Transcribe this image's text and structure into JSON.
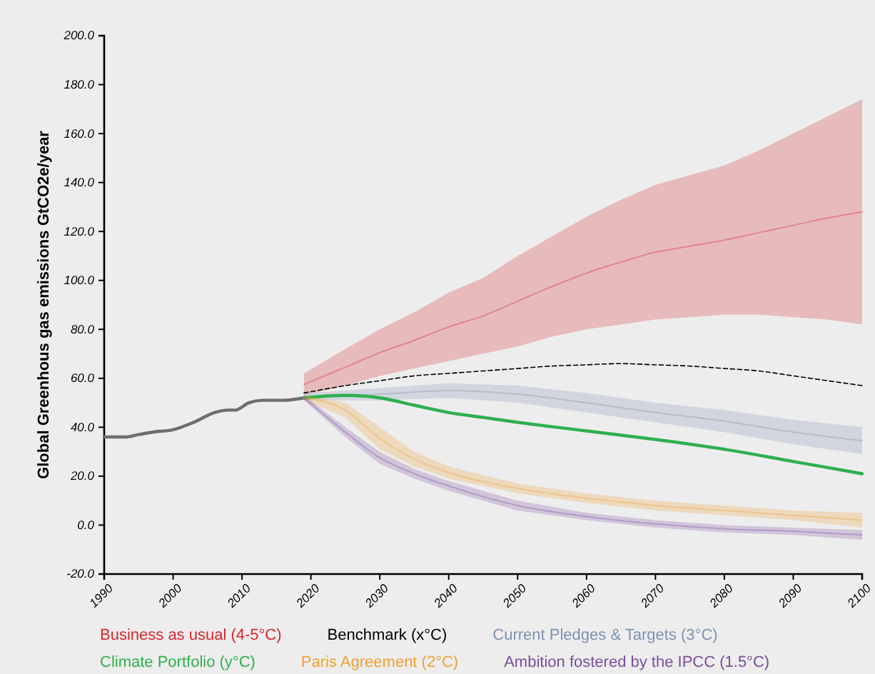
{
  "chart_data": {
    "type": "line",
    "ylabel": "Global Greenhous gas emissions GtCO2e/year",
    "xlim": [
      1990,
      2100
    ],
    "ylim": [
      -20,
      200
    ],
    "xticks": [
      1990,
      2000,
      2010,
      2020,
      2030,
      2040,
      2050,
      2060,
      2070,
      2080,
      2090,
      2100
    ],
    "yticks": [
      {
        "value": -20,
        "label": "-20.0"
      },
      {
        "value": 0,
        "label": "0.0"
      },
      {
        "value": 20,
        "label": "20.0"
      },
      {
        "value": 40,
        "label": "40.0"
      },
      {
        "value": 60,
        "label": "60.0"
      },
      {
        "value": 80,
        "label": "80.0"
      },
      {
        "value": 100,
        "label": "100.0"
      },
      {
        "value": 120,
        "label": "120.0"
      },
      {
        "value": 140,
        "label": "140.0"
      },
      {
        "value": 160,
        "label": "160.0"
      },
      {
        "value": 180,
        "label": "180.0"
      },
      {
        "value": 200,
        "label": "200.0"
      }
    ],
    "grid": false,
    "legend": "bottom",
    "marker": "none",
    "series": [
      {
        "color": "#6e6e6e",
        "x": [
          1990,
          1993,
          1995,
          1997,
          2000,
          2003,
          2006,
          2008,
          2009,
          2011,
          2013,
          2016,
          2019
        ],
        "values": [
          36,
          36,
          37,
          38,
          39,
          42,
          46,
          47,
          47,
          50,
          51,
          51,
          52
        ]
      },
      {
        "name": "Business as usual (4-5°C)",
        "color": "#d9262b",
        "x": [
          2019,
          2025,
          2030,
          2035,
          2040,
          2045,
          2050,
          2055,
          2060,
          2065,
          2070,
          2075,
          2080,
          2085,
          2090,
          2095,
          2100
        ],
        "values": [
          57.5,
          64.5,
          70.5,
          75.5,
          81,
          85.5,
          91.5,
          97.5,
          103,
          107.5,
          111.5,
          114,
          116.5,
          119.5,
          122.5,
          125.5,
          128
        ],
        "lower": [
          53,
          57,
          61,
          64,
          67,
          70,
          73,
          77,
          80,
          82,
          84,
          85,
          86,
          86,
          85,
          84,
          82
        ],
        "upper": [
          62,
          72,
          80,
          87,
          95,
          101,
          110,
          118,
          126,
          133,
          139,
          143,
          147,
          153,
          160,
          167,
          174
        ]
      },
      {
        "name": "Benchmark (x°C)",
        "color": "#000000",
        "line_style": "dashed",
        "x": [
          2019,
          2025,
          2030,
          2035,
          2040,
          2045,
          2050,
          2055,
          2060,
          2065,
          2070,
          2075,
          2080,
          2085,
          2090,
          2095,
          2100
        ],
        "values": [
          54,
          57,
          59,
          61,
          62,
          63,
          64,
          65,
          65.5,
          66,
          65.5,
          65,
          64,
          63,
          61,
          59,
          57
        ]
      },
      {
        "name": "Current Pledges & Targets (3°C)",
        "color": "#7f91b3",
        "x": [
          2019,
          2025,
          2030,
          2040,
          2050,
          2060,
          2070,
          2080,
          2090,
          2100
        ],
        "values": [
          52.5,
          53,
          53.5,
          55,
          53.5,
          50,
          46,
          42.5,
          38,
          34.5
        ],
        "lower": [
          51,
          51,
          51,
          52,
          50,
          46,
          42,
          38,
          33,
          29
        ],
        "upper": [
          54,
          55,
          56,
          58,
          57,
          54,
          50,
          47,
          43,
          40
        ]
      },
      {
        "name": "Climate Portfolio (y°C)",
        "color": "#2eb04f",
        "x": [
          2019,
          2025,
          2030,
          2035,
          2040,
          2045,
          2050,
          2060,
          2070,
          2080,
          2090,
          2100
        ],
        "values": [
          52,
          53,
          52,
          49,
          46,
          44,
          42,
          38.5,
          35,
          31,
          26,
          21
        ]
      },
      {
        "name": "Paris Agreement (2°C)",
        "color": "#f0a030",
        "x": [
          2019,
          2025,
          2030,
          2035,
          2040,
          2050,
          2060,
          2070,
          2080,
          2090,
          2100
        ],
        "values": [
          52,
          47,
          35.5,
          27,
          21.5,
          15,
          11,
          8,
          6,
          4,
          2
        ],
        "lower": [
          51,
          44,
          31,
          24,
          19,
          13,
          9,
          6,
          4,
          2,
          -1
        ],
        "upper": [
          53,
          50,
          40,
          30,
          24,
          17,
          13,
          10,
          8,
          6,
          5
        ]
      },
      {
        "name": "Ambition fostered by the IPCC (1.5°C)",
        "color": "#7a4ea0",
        "x": [
          2019,
          2025,
          2030,
          2035,
          2040,
          2050,
          2060,
          2070,
          2080,
          2090,
          2100
        ],
        "values": [
          52,
          38,
          27.5,
          21,
          16,
          8,
          3.5,
          0.5,
          -1.5,
          -2.5,
          -4
        ],
        "lower": [
          51,
          36,
          25,
          19,
          14,
          6,
          2,
          -1,
          -3,
          -4,
          -6
        ],
        "upper": [
          53,
          40,
          30,
          23,
          18,
          10,
          5,
          2,
          0,
          -1,
          -2
        ]
      }
    ]
  }
}
